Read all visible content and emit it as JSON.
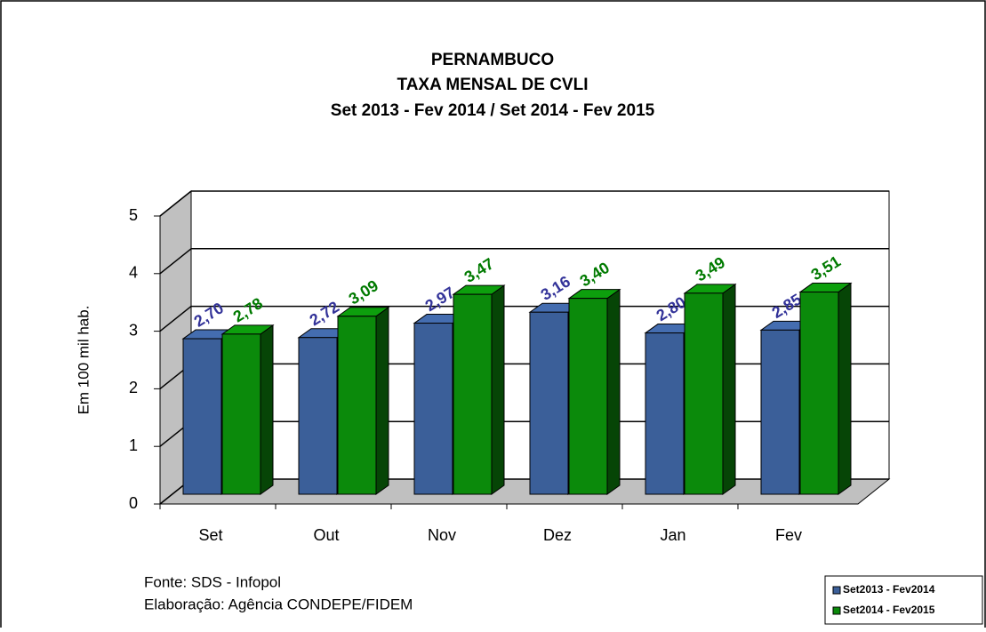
{
  "chart_data": {
    "type": "bar3d",
    "title": [
      "PERNAMBUCO",
      "TAXA MENSAL DE CVLI",
      "Set 2013 - Fev 2014  /  Set 2014 - Fev 2015"
    ],
    "y_label": "Em 100 mil hab.",
    "categories": [
      "Set",
      "Out",
      "Nov",
      "Dez",
      "Jan",
      "Fev"
    ],
    "series": [
      {
        "name": "Set2013 - Fev2014",
        "color": "#3b5f99",
        "values": [
          2.7,
          2.72,
          2.97,
          3.16,
          2.8,
          2.85
        ],
        "value_labels": [
          "2,70",
          "2,72",
          "2,97",
          "3,16",
          "2,80",
          "2,85"
        ],
        "label_color": "#333399"
      },
      {
        "name": "Set2014 - Fev2015",
        "color": "#0b8a0b",
        "values": [
          2.78,
          3.09,
          3.47,
          3.4,
          3.49,
          3.51
        ],
        "value_labels": [
          "2,78",
          "3,09",
          "3,47",
          "3,40",
          "3,49",
          "3,51"
        ],
        "label_color": "#007a00"
      }
    ],
    "ylim": [
      0,
      5
    ],
    "yticks": [
      0,
      1,
      2,
      3,
      4,
      5
    ],
    "grid": true,
    "legend": "bottom-right",
    "notes": [
      "Fonte: SDS - Infopol",
      "Elaboração: Agência CONDEPE/FIDEM"
    ]
  }
}
